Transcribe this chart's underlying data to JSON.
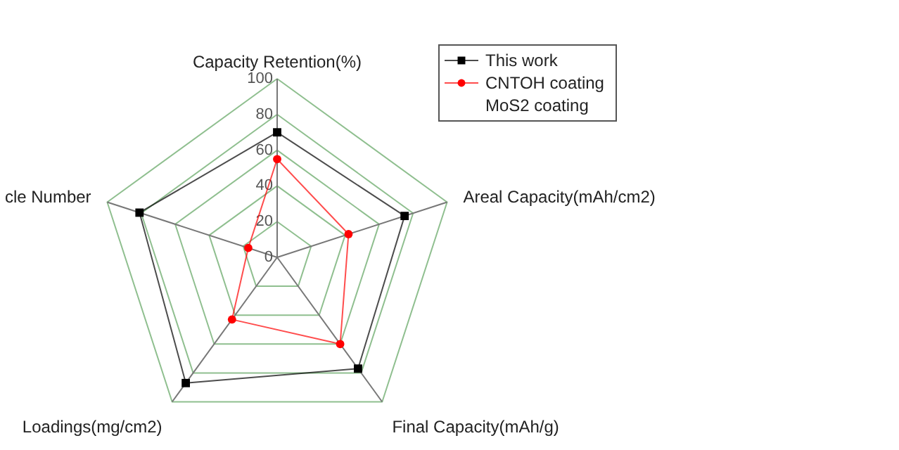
{
  "chart_data": {
    "type": "radar",
    "categories": [
      "Capacity Retention(%)",
      "Areal Capacity(mAh/cm2)",
      "Final Capacity(mAh/g)",
      "Loadings(mg/cm2)",
      "cle Number"
    ],
    "ylim": [
      0,
      100
    ],
    "yticks": [
      0,
      20,
      40,
      60,
      80,
      100
    ],
    "grid": true,
    "legend": "top right",
    "series": [
      {
        "name": "This work",
        "color": "#000000",
        "marker": "square",
        "values": [
          70,
          75,
          77,
          87,
          81
        ]
      },
      {
        "name": "CNTOH coating",
        "color": "#ff0000",
        "marker": "circle",
        "values": [
          55,
          42,
          60,
          43,
          17
        ]
      },
      {
        "name": "MoS2 coating",
        "values": [
          null,
          null,
          null,
          null,
          null
        ]
      }
    ]
  }
}
